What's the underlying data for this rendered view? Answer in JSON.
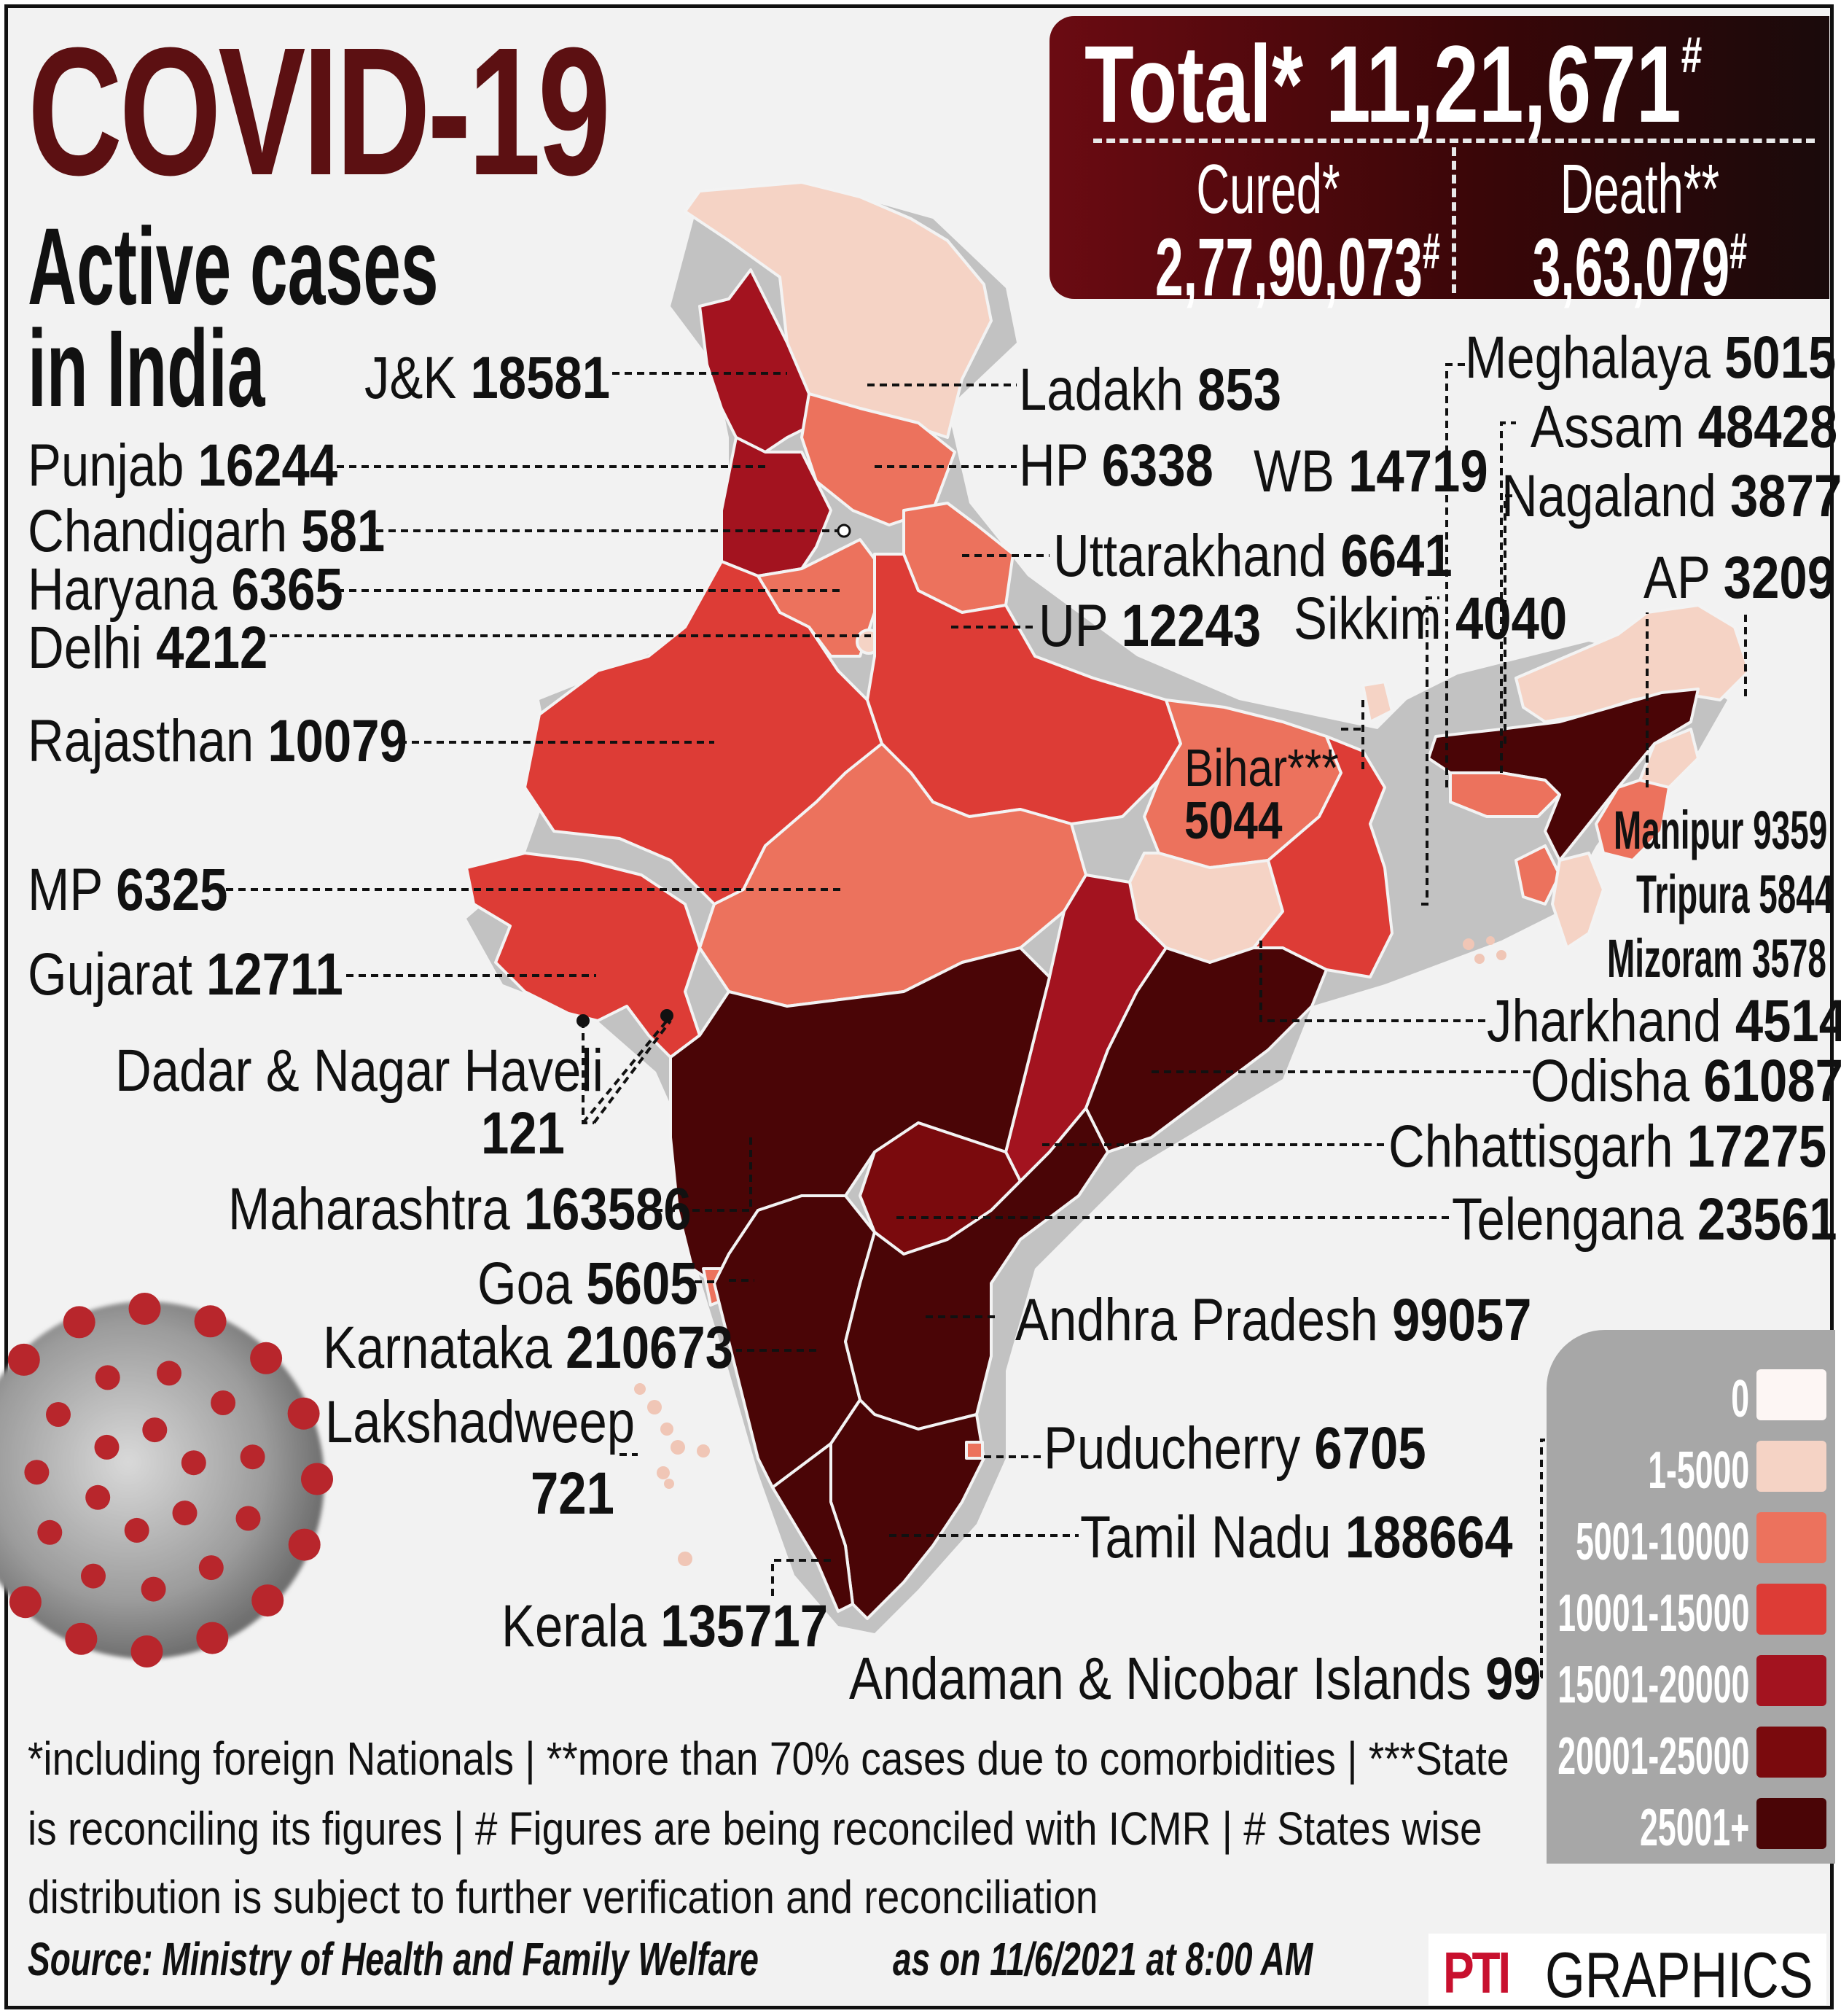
{
  "header": {
    "title": "COVID-19",
    "subtitle_line1": "Active cases",
    "subtitle_line2": "in India"
  },
  "totals": {
    "total_label": "Total*",
    "total_value": "11,21,671",
    "total_mark": "#",
    "cured_label": "Cured*",
    "cured_value": "2,77,90,073",
    "cured_mark": "#",
    "death_label": "Death**",
    "death_value": "3,63,079",
    "death_mark": "#"
  },
  "regions": [
    {
      "key": "jk",
      "name": "J&K",
      "value": "18581",
      "color": "#a3131f"
    },
    {
      "key": "ladakh",
      "name": "Ladakh",
      "value": "853",
      "color": "#f5d3c5"
    },
    {
      "key": "punjab",
      "name": "Punjab",
      "value": "16244",
      "color": "#a3131f"
    },
    {
      "key": "hp",
      "name": "HP",
      "value": "6338",
      "color": "#ec725d"
    },
    {
      "key": "chandigarh",
      "name": "Chandigarh",
      "value": "581",
      "color": "#f5d3c5"
    },
    {
      "key": "haryana",
      "name": "Haryana",
      "value": "6365",
      "color": "#ec725d"
    },
    {
      "key": "uttarakhand",
      "name": "Uttarakhand",
      "value": "6641",
      "color": "#ec725d"
    },
    {
      "key": "delhi",
      "name": "Delhi",
      "value": "4212",
      "color": "#f5d3c5"
    },
    {
      "key": "up",
      "name": "UP",
      "value": "12243",
      "color": "#dd3c36"
    },
    {
      "key": "rajasthan",
      "name": "Rajasthan",
      "value": "10079",
      "color": "#dd3c36"
    },
    {
      "key": "wb",
      "name": "WB",
      "value": "14719",
      "color": "#dd3c36"
    },
    {
      "key": "sikkim",
      "name": "Sikkim",
      "value": "4040",
      "color": "#f5d3c5"
    },
    {
      "key": "meghalaya",
      "name": "Meghalaya",
      "value": "5015",
      "color": "#ec725d"
    },
    {
      "key": "assam",
      "name": "Assam",
      "value": "48428",
      "color": "#4a0506"
    },
    {
      "key": "nagaland",
      "name": "Nagaland",
      "value": "3877",
      "color": "#f5d3c5"
    },
    {
      "key": "ap_arunachal",
      "name": "AP",
      "value": "3209",
      "color": "#f5d3c5"
    },
    {
      "key": "bihar",
      "name": "Bihar***",
      "value": "5044",
      "color": "#ec725d"
    },
    {
      "key": "manipur",
      "name": "Manipur",
      "value": "9359",
      "color": "#ec725d"
    },
    {
      "key": "tripura",
      "name": "Tripura",
      "value": "5844",
      "color": "#ec725d"
    },
    {
      "key": "mizoram",
      "name": "Mizoram",
      "value": "3578",
      "color": "#f5d3c5"
    },
    {
      "key": "mp",
      "name": "MP",
      "value": "6325",
      "color": "#ec725d"
    },
    {
      "key": "gujarat",
      "name": "Gujarat",
      "value": "12711",
      "color": "#dd3c36"
    },
    {
      "key": "jharkhand",
      "name": "Jharkhand",
      "value": "4514",
      "color": "#f5d3c5"
    },
    {
      "key": "odisha",
      "name": "Odisha",
      "value": "61087",
      "color": "#4a0506"
    },
    {
      "key": "dnh",
      "name": "Dadar & Nagar Haveli",
      "value": "121",
      "color": "#f5d3c5"
    },
    {
      "key": "chhattisgarh",
      "name": "Chhattisgarh",
      "value": "17275",
      "color": "#a3131f"
    },
    {
      "key": "maharashtra",
      "name": "Maharashtra",
      "value": "163586",
      "color": "#4a0506"
    },
    {
      "key": "telengana",
      "name": "Telengana",
      "value": "23561",
      "color": "#7a0a0d"
    },
    {
      "key": "goa",
      "name": "Goa",
      "value": "5605",
      "color": "#ec725d"
    },
    {
      "key": "karnataka",
      "name": "Karnataka",
      "value": "210673",
      "color": "#4a0506"
    },
    {
      "key": "andhra",
      "name": "Andhra Pradesh",
      "value": "99057",
      "color": "#4a0506"
    },
    {
      "key": "lakshadweep",
      "name": "Lakshadweep",
      "value": "721",
      "color": "#f5d3c5"
    },
    {
      "key": "puducherry",
      "name": "Puducherry",
      "value": "6705",
      "color": "#ec725d"
    },
    {
      "key": "tamilnadu",
      "name": "Tamil Nadu",
      "value": "188664",
      "color": "#4a0506"
    },
    {
      "key": "kerala",
      "name": "Kerala",
      "value": "135717",
      "color": "#4a0506"
    },
    {
      "key": "andaman",
      "name": "Andaman & Nicobar Islands",
      "value": "99",
      "color": "#f5d3c5"
    }
  ],
  "legend": [
    {
      "label": "0",
      "color": "#fdf6f4"
    },
    {
      "label": "1-5000",
      "color": "#f5d3c5"
    },
    {
      "label": "5001-10000",
      "color": "#ec725d"
    },
    {
      "label": "10001-15000",
      "color": "#dd3c36"
    },
    {
      "label": "15001-20000",
      "color": "#a3131f"
    },
    {
      "label": "20001-25000",
      "color": "#7a0a0d"
    },
    {
      "label": "25001+",
      "color": "#4a0506"
    }
  ],
  "footnotes": {
    "line1": "*including foreign Nationals | **more than 70% cases due to comorbidities | ***State",
    "line2": "is reconciling its figures | # Figures are being reconciled with ICMR  | # States wise",
    "line3": "distribution is subject to further verification and reconciliation"
  },
  "source": "Source: Ministry of Health and Family Welfare",
  "as_on": "as on 11/6/2021 at 8:00 AM",
  "brand": {
    "logo": "PTI",
    "word": "GRAPHICS"
  }
}
